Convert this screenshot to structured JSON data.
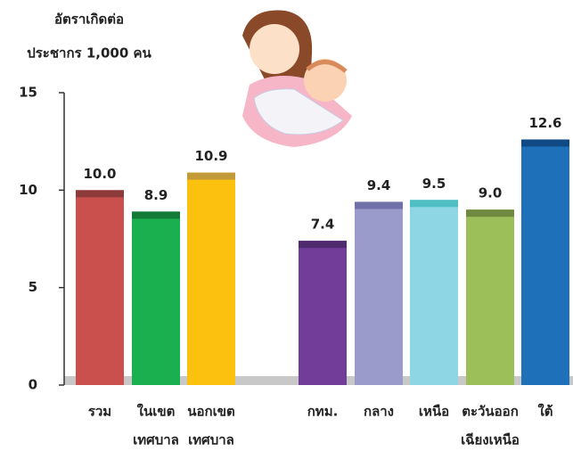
{
  "chart_data": {
    "type": "bar",
    "y_label": [
      "อัตราเกิดต่อ",
      "ประชากร 1,000 คน"
    ],
    "categories": [
      [
        "รวม"
      ],
      [
        "ในเขต",
        "เทศบาล"
      ],
      [
        "นอกเขต",
        "เทศบาล"
      ],
      [
        "กทม."
      ],
      [
        "กลาง"
      ],
      [
        "เหนือ"
      ],
      [
        "ตะวันออก",
        "เฉียงเหนือ"
      ],
      [
        "ใต้"
      ]
    ],
    "values": [
      10.0,
      8.9,
      10.9,
      7.4,
      9.4,
      9.5,
      9.0,
      12.6
    ],
    "value_labels": [
      "10.0",
      "8.9",
      "10.9",
      "7.4",
      "9.4",
      "9.5",
      "9.0",
      "12.6"
    ],
    "colors": [
      "#c9504c",
      "#1ab04f",
      "#fcc10f",
      "#723d98",
      "#9b9bcb",
      "#8fd6e4",
      "#9cbf5a",
      "#1e71b8"
    ],
    "cap_colors": [
      "#8e3a3a",
      "#137a37",
      "#c29a3a",
      "#4e2a6e",
      "#7070aa",
      "#4ec0c4",
      "#6f8a40",
      "#0f4a85"
    ],
    "ylim": [
      0,
      15
    ],
    "yticks": [
      0,
      5,
      10,
      15
    ]
  }
}
